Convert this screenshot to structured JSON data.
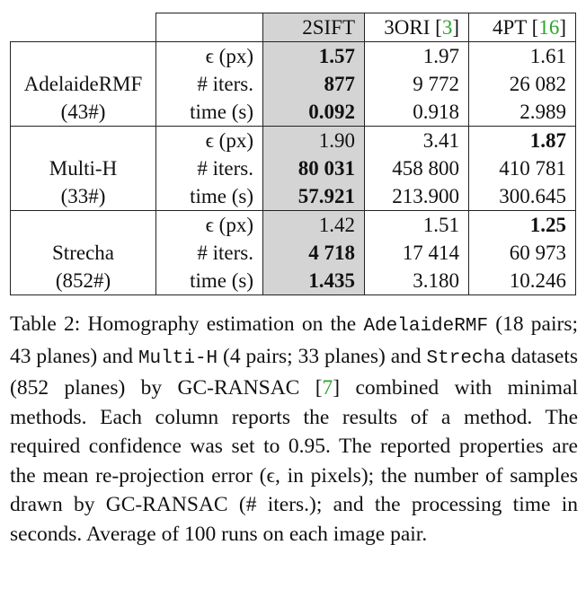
{
  "table": {
    "methods": [
      {
        "name": "2SIFT",
        "cite": ""
      },
      {
        "name": "3ORI",
        "cite": "3"
      },
      {
        "name": "4PT",
        "cite": "16"
      }
    ],
    "datasets": [
      {
        "name": "AdelaideRMF",
        "count": "(43#)",
        "rows": [
          {
            "prop": "ϵ (px)",
            "values": [
              "1.57",
              "1.97",
              "1.61"
            ],
            "bold": [
              true,
              false,
              false
            ]
          },
          {
            "prop": "# iters.",
            "values": [
              "877",
              "9 772",
              "26 082"
            ],
            "bold": [
              true,
              false,
              false
            ]
          },
          {
            "prop": "time (s)",
            "values": [
              "0.092",
              "0.918",
              "2.989"
            ],
            "bold": [
              true,
              false,
              false
            ]
          }
        ]
      },
      {
        "name": "Multi-H",
        "count": "(33#)",
        "rows": [
          {
            "prop": "ϵ (px)",
            "values": [
              "1.90",
              "3.41",
              "1.87"
            ],
            "bold": [
              false,
              false,
              true
            ]
          },
          {
            "prop": "# iters.",
            "values": [
              "80 031",
              "458 800",
              "410 781"
            ],
            "bold": [
              true,
              false,
              false
            ]
          },
          {
            "prop": "time (s)",
            "values": [
              "57.921",
              "213.900",
              "300.645"
            ],
            "bold": [
              true,
              false,
              false
            ]
          }
        ]
      },
      {
        "name": "Strecha",
        "count": "(852#)",
        "rows": [
          {
            "prop": "ϵ (px)",
            "values": [
              "1.42",
              "1.51",
              "1.25"
            ],
            "bold": [
              false,
              false,
              true
            ]
          },
          {
            "prop": "# iters.",
            "values": [
              "4 718",
              "17 414",
              "60 973"
            ],
            "bold": [
              true,
              false,
              false
            ]
          },
          {
            "prop": "time (s)",
            "values": [
              "1.435",
              "3.180",
              "10.246"
            ],
            "bold": [
              true,
              false,
              false
            ]
          }
        ]
      }
    ]
  },
  "caption": {
    "prefix": "Table 2: Homography estimation on the ",
    "ds1": "AdelaideRMF",
    "mid1": " (18 pairs; 43 planes) and ",
    "ds2": "Multi-H",
    "mid2": " (4 pairs; 33 planes) and ",
    "ds3": "Strecha",
    "mid3": " datasets (852 planes) by GC-RANSAC [",
    "cite": "7",
    "rest": "] combined with minimal methods. Each column reports the results of a method. The required confidence was set to 0.95. The reported properties are the mean re-projection error (ϵ, in pixels); the number of samples drawn by GC-RANSAC (# iters.); and the processing time in seconds. Average of 100 runs on each image pair."
  }
}
